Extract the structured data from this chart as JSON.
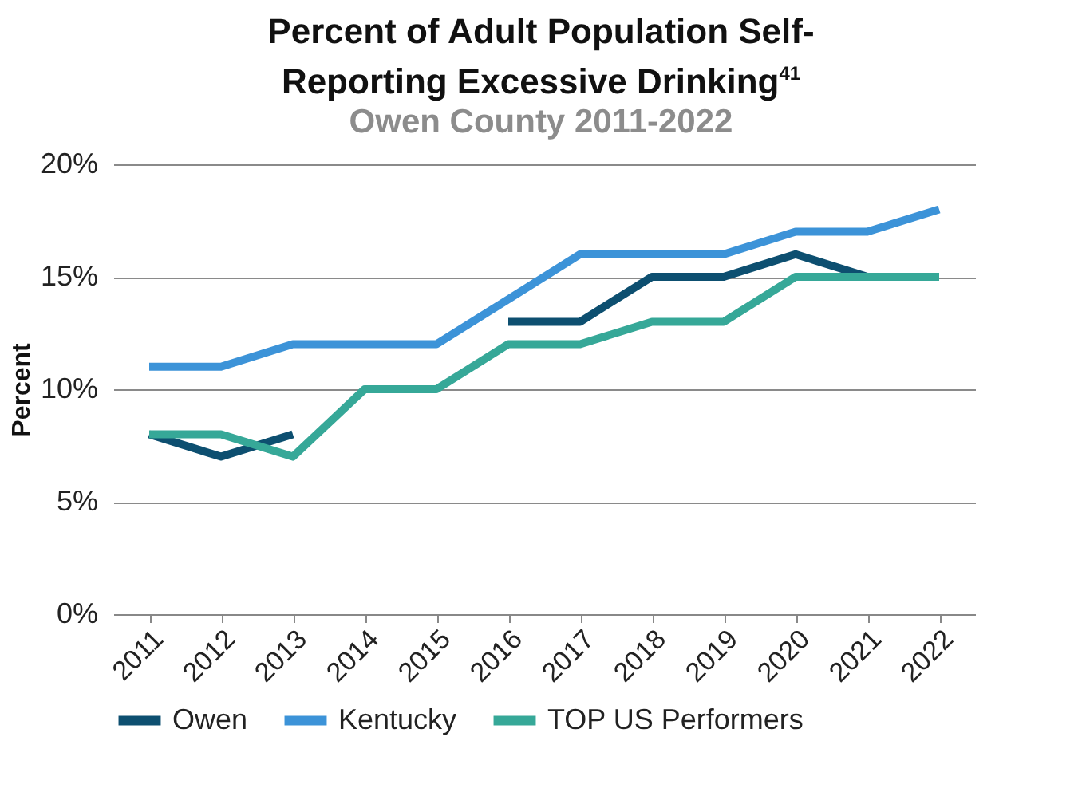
{
  "chart_data": {
    "type": "line",
    "title": "Percent of Adult Population Self-Reporting Excessive Drinking$^{41}$",
    "subtitle": "Owen County 2011-2022",
    "ylabel": "Percent",
    "categories": [
      "2011",
      "2012",
      "2013",
      "2014",
      "2015",
      "2016",
      "2017",
      "2018",
      "2019",
      "2020",
      "2021",
      "2022"
    ],
    "series": [
      {
        "name": "Owen",
        "color": "#0d4f70",
        "values": [
          8,
          7,
          8,
          null,
          null,
          13,
          13,
          15,
          15,
          16,
          15,
          15
        ]
      },
      {
        "name": "Kentucky",
        "color": "#3c93d8",
        "values": [
          11,
          11,
          12,
          12,
          12,
          14,
          16,
          16,
          16,
          17,
          17,
          18
        ]
      },
      {
        "name": "TOP US Performers",
        "color": "#36a898",
        "values": [
          8,
          8,
          7,
          10,
          10,
          12,
          12,
          13,
          13,
          15,
          15,
          15
        ]
      }
    ],
    "ylim": [
      0,
      20
    ],
    "yticks": [
      {
        "value": 0,
        "label": "0%"
      },
      {
        "value": 5,
        "label": "5%"
      },
      {
        "value": 10,
        "label": "10%"
      },
      {
        "value": 15,
        "label": "15%"
      },
      {
        "value": 20,
        "label": "20%"
      }
    ],
    "grid": "y",
    "legend": "bottom",
    "marker": "none",
    "line_style": "solid"
  }
}
